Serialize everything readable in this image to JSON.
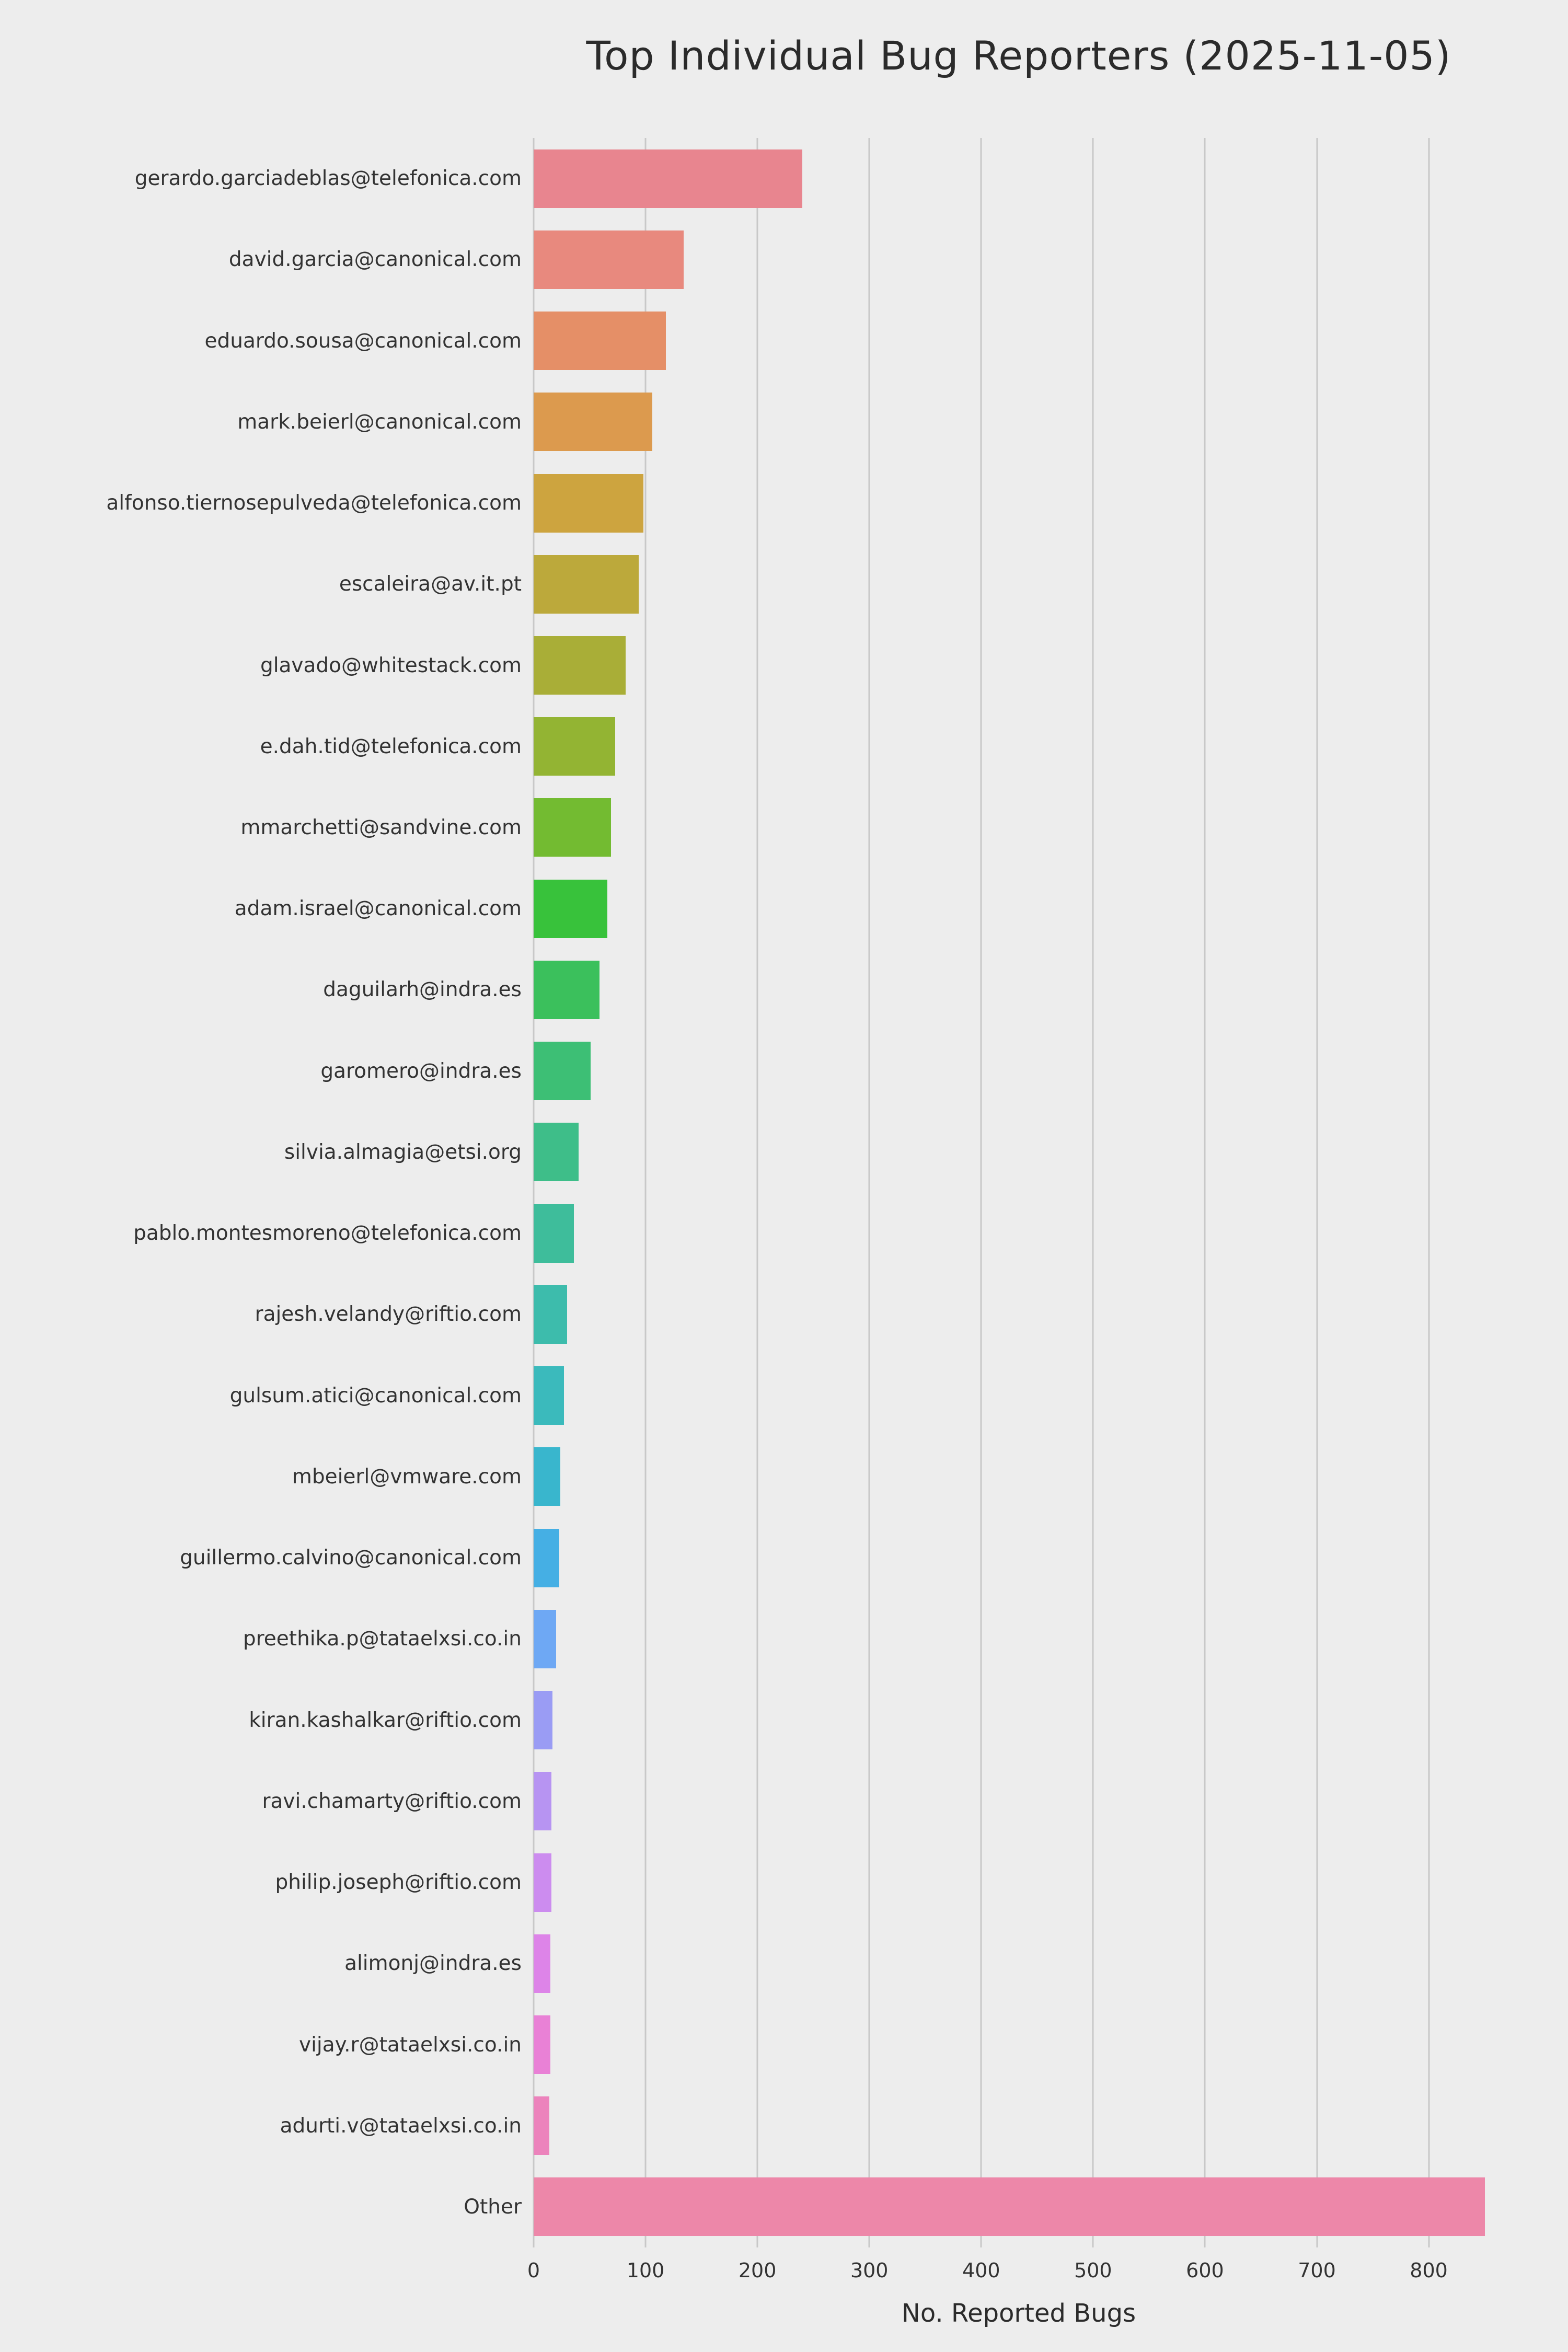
{
  "chart_data": {
    "type": "bar",
    "orientation": "horizontal",
    "title": "Top Individual Bug Reporters (2025-11-05)",
    "xlabel": "No. Reported Bugs",
    "ylabel": "",
    "xlim": [
      0,
      867
    ],
    "ticks": [
      0,
      100,
      200,
      300,
      400,
      500,
      600,
      700,
      800
    ],
    "grid": "vertical",
    "legend": "none",
    "categories": [
      "gerardo.garciadeblas@telefonica.com",
      "david.garcia@canonical.com",
      "eduardo.sousa@canonical.com",
      "mark.beierl@canonical.com",
      "alfonso.tiernosepulveda@telefonica.com",
      "escaleira@av.it.pt",
      "glavado@whitestack.com",
      "e.dah.tid@telefonica.com",
      "mmarchetti@sandvine.com",
      "adam.israel@canonical.com",
      "daguilarh@indra.es",
      "garomero@indra.es",
      "silvia.almagia@etsi.org",
      "pablo.montesmoreno@telefonica.com",
      "rajesh.velandy@riftio.com",
      "gulsum.atici@canonical.com",
      "mbeierl@vmware.com",
      "guillermo.calvino@canonical.com",
      "preethika.p@tataelxsi.co.in",
      "kiran.kashalkar@riftio.com",
      "ravi.chamarty@riftio.com",
      "philip.joseph@riftio.com",
      "alimonj@indra.es",
      "vijay.r@tataelxsi.co.in",
      "adurti.v@tataelxsi.co.in",
      "Other"
    ],
    "values": [
      240,
      134,
      118,
      106,
      98,
      94,
      82,
      73,
      69,
      66,
      59,
      51,
      40,
      36,
      30,
      27,
      24,
      23,
      20,
      17,
      16,
      16,
      15,
      15,
      14,
      850
    ],
    "colors": [
      "#e8858f",
      "#e8897e",
      "#e58f67",
      "#dc9a4e",
      "#cda43f",
      "#bca93b",
      "#a9ae37",
      "#93b433",
      "#73bb31",
      "#38c23b",
      "#3bc05c",
      "#3dbf75",
      "#3ebe89",
      "#3ebd9b",
      "#3dbcac",
      "#3bbabc",
      "#39b6cd",
      "#45afe4",
      "#6ea8f4",
      "#9a9cf4",
      "#b794f2",
      "#cc8cef",
      "#dd84e8",
      "#e981d6",
      "#ec83bc",
      "#ed87a9"
    ],
    "background_color": "#ededed",
    "gridline_color": "#c8c8c8",
    "text_color": "#333333"
  }
}
